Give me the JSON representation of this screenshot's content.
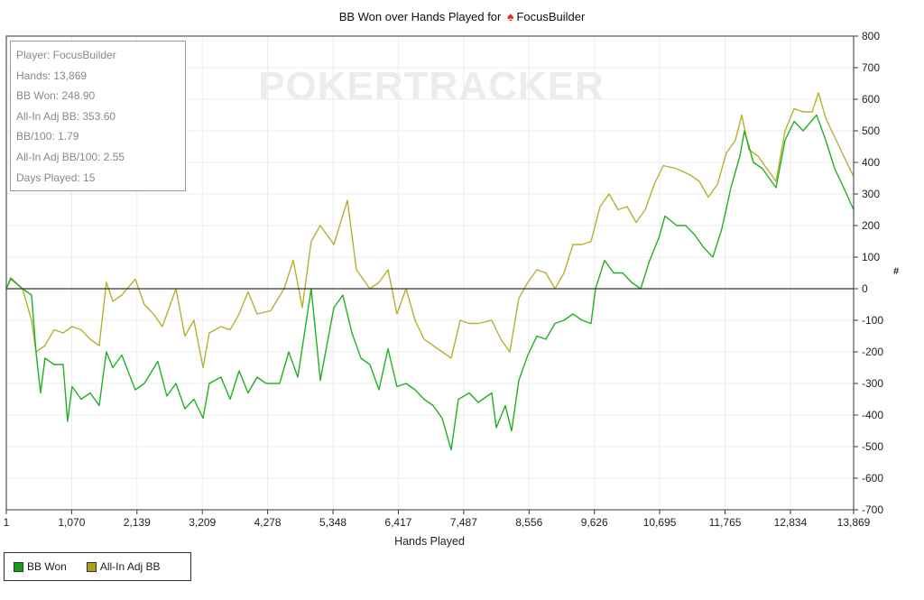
{
  "chart_data": {
    "type": "line",
    "title_prefix": "BB Won over Hands Played for",
    "title_player": "FocusBuilder",
    "title_icon": "spade-icon",
    "xlabel": "Hands Played",
    "ylabel": "#",
    "xlim": [
      1,
      13869
    ],
    "ylim": [
      -700,
      800
    ],
    "xticks": [
      1,
      1070,
      2139,
      3209,
      4278,
      5348,
      6417,
      7487,
      8556,
      9626,
      10695,
      11765,
      12834,
      13869
    ],
    "xtick_labels": [
      "1",
      "1,070",
      "2,139",
      "3,209",
      "4,278",
      "5,348",
      "6,417",
      "7,487",
      "8,556",
      "9,626",
      "10,695",
      "11,765",
      "12,834",
      "13,869"
    ],
    "yticks": [
      800,
      700,
      600,
      500,
      400,
      300,
      200,
      100,
      0,
      -100,
      -200,
      -300,
      -400,
      -500,
      -600,
      -700
    ],
    "grid": true,
    "legend_position": "bottom-left",
    "watermark": "POKERTRACKER",
    "series": [
      {
        "name": "BB Won",
        "color": "#22b022",
        "legend_color": "#1a9a1a",
        "points": [
          [
            1,
            0
          ],
          [
            74,
            34
          ],
          [
            266,
            0
          ],
          [
            414,
            -20
          ],
          [
            487,
            -200
          ],
          [
            561,
            -330
          ],
          [
            635,
            -220
          ],
          [
            783,
            -240
          ],
          [
            931,
            -240
          ],
          [
            1004,
            -420
          ],
          [
            1078,
            -310
          ],
          [
            1226,
            -350
          ],
          [
            1374,
            -330
          ],
          [
            1521,
            -370
          ],
          [
            1639,
            -200
          ],
          [
            1743,
            -250
          ],
          [
            1891,
            -210
          ],
          [
            2112,
            -320
          ],
          [
            2260,
            -300
          ],
          [
            2481,
            -230
          ],
          [
            2629,
            -340
          ],
          [
            2777,
            -300
          ],
          [
            2924,
            -380
          ],
          [
            3072,
            -350
          ],
          [
            3220,
            -410
          ],
          [
            3323,
            -300
          ],
          [
            3515,
            -280
          ],
          [
            3663,
            -350
          ],
          [
            3811,
            -260
          ],
          [
            3958,
            -330
          ],
          [
            4106,
            -280
          ],
          [
            4254,
            -300
          ],
          [
            4475,
            -300
          ],
          [
            4623,
            -200
          ],
          [
            4771,
            -280
          ],
          [
            4992,
            0
          ],
          [
            5140,
            -290
          ],
          [
            5362,
            -60
          ],
          [
            5509,
            -20
          ],
          [
            5657,
            -140
          ],
          [
            5805,
            -220
          ],
          [
            5952,
            -240
          ],
          [
            6100,
            -320
          ],
          [
            6248,
            -190
          ],
          [
            6395,
            -310
          ],
          [
            6543,
            -300
          ],
          [
            6691,
            -320
          ],
          [
            6839,
            -350
          ],
          [
            6986,
            -370
          ],
          [
            7134,
            -410
          ],
          [
            7282,
            -510
          ],
          [
            7400,
            -350
          ],
          [
            7577,
            -330
          ],
          [
            7725,
            -360
          ],
          [
            7947,
            -330
          ],
          [
            8020,
            -440
          ],
          [
            8168,
            -370
          ],
          [
            8271,
            -450
          ],
          [
            8389,
            -290
          ],
          [
            8537,
            -210
          ],
          [
            8685,
            -150
          ],
          [
            8832,
            -160
          ],
          [
            8980,
            -110
          ],
          [
            9128,
            -100
          ],
          [
            9276,
            -80
          ],
          [
            9423,
            -100
          ],
          [
            9571,
            -110
          ],
          [
            9645,
            0
          ],
          [
            9793,
            90
          ],
          [
            9940,
            50
          ],
          [
            10088,
            50
          ],
          [
            10236,
            20
          ],
          [
            10383,
            0
          ],
          [
            10531,
            90
          ],
          [
            10679,
            160
          ],
          [
            10782,
            230
          ],
          [
            10974,
            200
          ],
          [
            11122,
            200
          ],
          [
            11270,
            170
          ],
          [
            11417,
            130
          ],
          [
            11565,
            100
          ],
          [
            11713,
            190
          ],
          [
            11860,
            320
          ],
          [
            12008,
            420
          ],
          [
            12082,
            500
          ],
          [
            12230,
            400
          ],
          [
            12378,
            380
          ],
          [
            12599,
            320
          ],
          [
            12747,
            470
          ],
          [
            12895,
            530
          ],
          [
            13042,
            500
          ],
          [
            13264,
            550
          ],
          [
            13412,
            470
          ],
          [
            13560,
            380
          ],
          [
            13707,
            320
          ],
          [
            13869,
            250
          ]
        ]
      },
      {
        "name": "All-In Adj BB",
        "color": "#b8b030",
        "legend_color": "#a8a018",
        "points": [
          [
            1,
            0
          ],
          [
            74,
            30
          ],
          [
            266,
            0
          ],
          [
            414,
            -100
          ],
          [
            487,
            -200
          ],
          [
            635,
            -180
          ],
          [
            783,
            -130
          ],
          [
            931,
            -140
          ],
          [
            1078,
            -120
          ],
          [
            1226,
            -130
          ],
          [
            1374,
            -160
          ],
          [
            1521,
            -180
          ],
          [
            1639,
            20
          ],
          [
            1743,
            -40
          ],
          [
            1891,
            -20
          ],
          [
            2112,
            30
          ],
          [
            2260,
            -50
          ],
          [
            2408,
            -80
          ],
          [
            2555,
            -120
          ],
          [
            2703,
            -40
          ],
          [
            2777,
            0
          ],
          [
            2924,
            -150
          ],
          [
            3072,
            -100
          ],
          [
            3220,
            -250
          ],
          [
            3323,
            -140
          ],
          [
            3515,
            -120
          ],
          [
            3663,
            -130
          ],
          [
            3811,
            -80
          ],
          [
            3958,
            -10
          ],
          [
            4106,
            -80
          ],
          [
            4328,
            -70
          ],
          [
            4549,
            0
          ],
          [
            4697,
            90
          ],
          [
            4845,
            -60
          ],
          [
            4992,
            150
          ],
          [
            5140,
            200
          ],
          [
            5362,
            140
          ],
          [
            5583,
            280
          ],
          [
            5731,
            60
          ],
          [
            5952,
            0
          ],
          [
            6100,
            20
          ],
          [
            6248,
            60
          ],
          [
            6395,
            -80
          ],
          [
            6543,
            0
          ],
          [
            6691,
            -100
          ],
          [
            6839,
            -160
          ],
          [
            6986,
            -180
          ],
          [
            7134,
            -200
          ],
          [
            7282,
            -220
          ],
          [
            7430,
            -100
          ],
          [
            7577,
            -110
          ],
          [
            7725,
            -110
          ],
          [
            7947,
            -100
          ],
          [
            8094,
            -160
          ],
          [
            8242,
            -200
          ],
          [
            8389,
            -30
          ],
          [
            8537,
            20
          ],
          [
            8685,
            60
          ],
          [
            8832,
            50
          ],
          [
            8980,
            0
          ],
          [
            9128,
            50
          ],
          [
            9276,
            140
          ],
          [
            9423,
            140
          ],
          [
            9571,
            150
          ],
          [
            9719,
            260
          ],
          [
            9866,
            300
          ],
          [
            10014,
            250
          ],
          [
            10162,
            260
          ],
          [
            10310,
            210
          ],
          [
            10457,
            250
          ],
          [
            10605,
            330
          ],
          [
            10753,
            390
          ],
          [
            10974,
            380
          ],
          [
            11196,
            360
          ],
          [
            11344,
            340
          ],
          [
            11491,
            290
          ],
          [
            11639,
            330
          ],
          [
            11787,
            430
          ],
          [
            11934,
            470
          ],
          [
            12038,
            550
          ],
          [
            12156,
            440
          ],
          [
            12304,
            420
          ],
          [
            12451,
            380
          ],
          [
            12599,
            340
          ],
          [
            12747,
            500
          ],
          [
            12895,
            570
          ],
          [
            13042,
            560
          ],
          [
            13190,
            560
          ],
          [
            13294,
            620
          ],
          [
            13412,
            540
          ],
          [
            13560,
            480
          ],
          [
            13707,
            420
          ],
          [
            13869,
            355
          ]
        ]
      }
    ]
  },
  "info_box": {
    "player": "Player: FocusBuilder",
    "hands": "Hands: 13,869",
    "bb_won": "BB Won: 248.90",
    "allin_adj_bb": "All-In Adj BB: 353.60",
    "bb_per_100": "BB/100: 1.79",
    "allin_adj_bb_per_100": "All-In Adj BB/100: 2.55",
    "days_played": "Days Played: 15"
  }
}
